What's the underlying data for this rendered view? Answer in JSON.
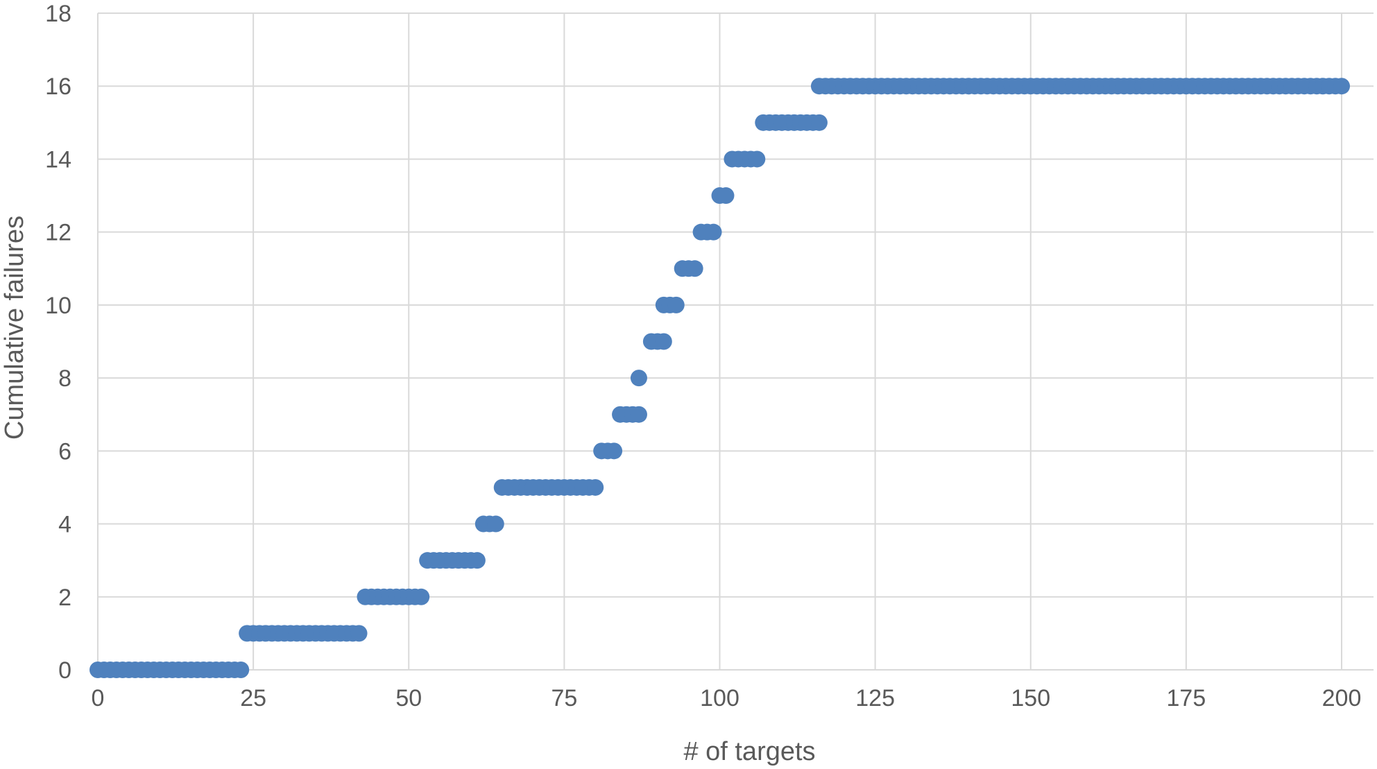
{
  "chart_data": {
    "type": "scatter",
    "title": "",
    "xlabel": "# of targets",
    "ylabel": "Cumulative failures",
    "xlim": [
      0,
      205
    ],
    "ylim": [
      0,
      18
    ],
    "xticks": [
      0,
      25,
      50,
      75,
      100,
      125,
      150,
      175,
      200
    ],
    "yticks": [
      0,
      2,
      4,
      6,
      8,
      10,
      12,
      14,
      16,
      18
    ],
    "grid": true,
    "legend": "none",
    "marker_color": "#4f81bd",
    "segments": [
      {
        "y": 0,
        "x_start": 0,
        "x_end": 23
      },
      {
        "y": 1,
        "x_start": 24,
        "x_end": 42
      },
      {
        "y": 2,
        "x_start": 43,
        "x_end": 52
      },
      {
        "y": 3,
        "x_start": 53,
        "x_end": 61
      },
      {
        "y": 4,
        "x_start": 62,
        "x_end": 64
      },
      {
        "y": 5,
        "x_start": 65,
        "x_end": 80
      },
      {
        "y": 6,
        "x_start": 81,
        "x_end": 83
      },
      {
        "y": 7,
        "x_start": 84,
        "x_end": 87
      },
      {
        "y": 8,
        "x_start": 87,
        "x_end": 87
      },
      {
        "y": 9,
        "x_start": 89,
        "x_end": 91
      },
      {
        "y": 10,
        "x_start": 91,
        "x_end": 93
      },
      {
        "y": 11,
        "x_start": 94,
        "x_end": 96
      },
      {
        "y": 12,
        "x_start": 97,
        "x_end": 99
      },
      {
        "y": 13,
        "x_start": 100,
        "x_end": 101
      },
      {
        "y": 14,
        "x_start": 102,
        "x_end": 106
      },
      {
        "y": 15,
        "x_start": 107,
        "x_end": 116
      },
      {
        "y": 16,
        "x_start": 116,
        "x_end": 200
      }
    ]
  }
}
